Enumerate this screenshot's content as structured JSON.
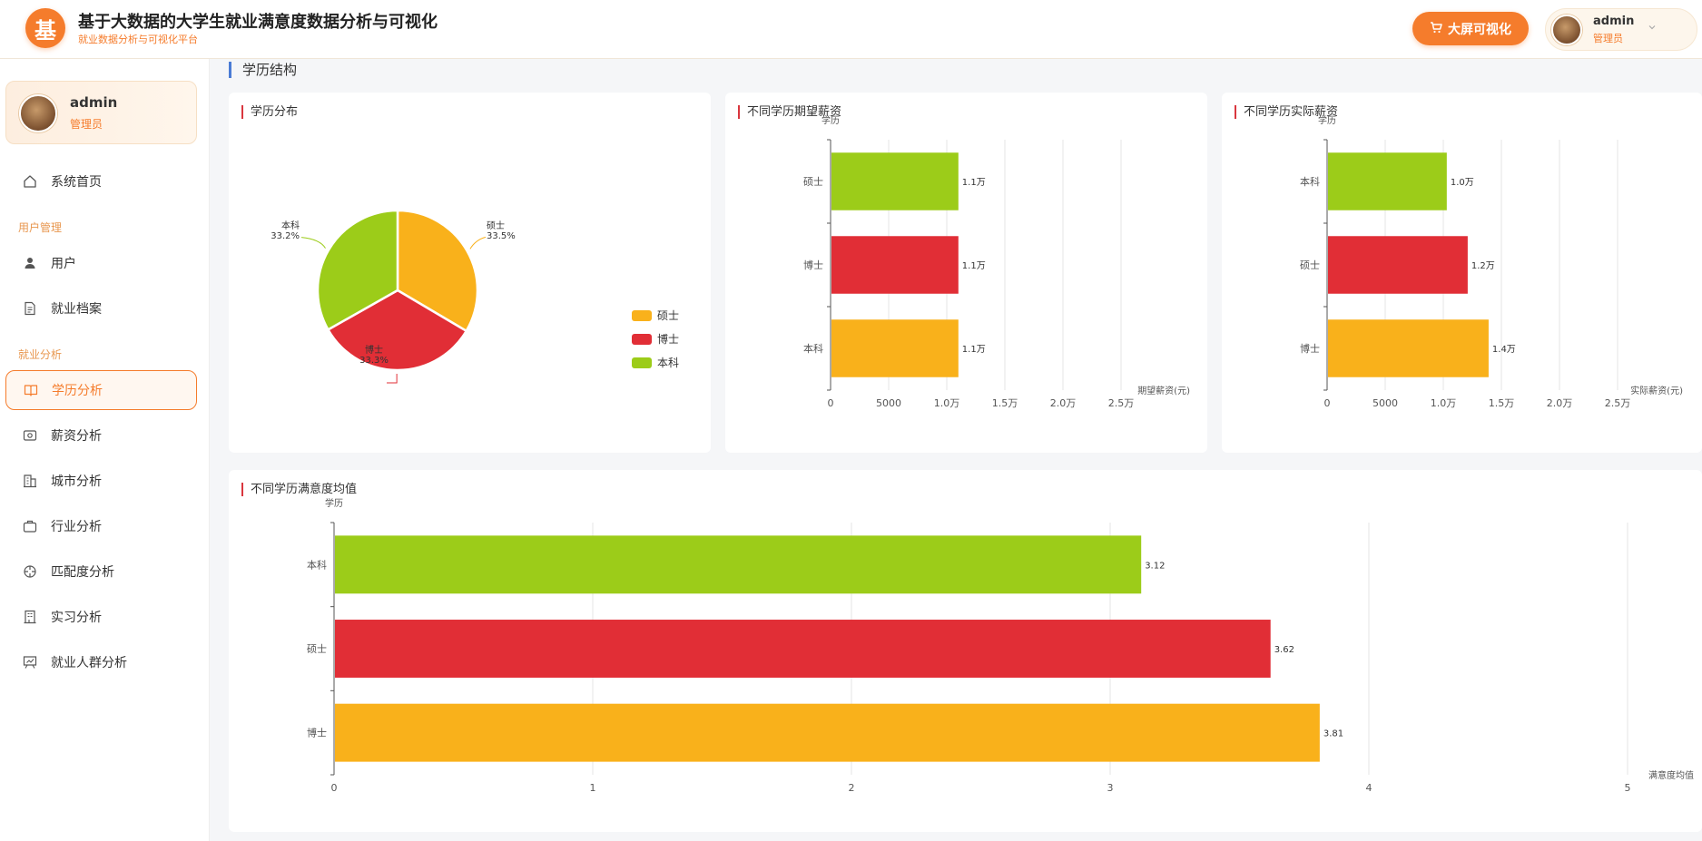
{
  "header": {
    "logo_char": "基",
    "title": "基于大数据的大学生就业满意度数据分析与可视化",
    "subtitle": "就业数据分析与可视化平台",
    "big_screen_label": "大屏可视化",
    "user_name": "admin",
    "user_role": "管理员"
  },
  "sidebar": {
    "user_name": "admin",
    "user_role": "管理员",
    "items": [
      {
        "label": "系统首页",
        "icon": "home-icon"
      },
      {
        "group": "用户管理"
      },
      {
        "label": "用户",
        "icon": "user-icon"
      },
      {
        "label": "就业档案",
        "icon": "document-icon"
      },
      {
        "group": "就业分析"
      },
      {
        "label": "学历分析",
        "icon": "book-icon",
        "active": true
      },
      {
        "label": "薪资分析",
        "icon": "money-icon"
      },
      {
        "label": "城市分析",
        "icon": "building-icon"
      },
      {
        "label": "行业分析",
        "icon": "briefcase-icon"
      },
      {
        "label": "匹配度分析",
        "icon": "target-icon"
      },
      {
        "label": "实习分析",
        "icon": "office-icon"
      },
      {
        "label": "就业人群分析",
        "icon": "presentation-icon"
      }
    ]
  },
  "main": {
    "section_title": "学历结构"
  },
  "colors": {
    "accent": "#f57c2c",
    "yellow": "#f9b11b",
    "red": "#e12e36",
    "green": "#9ccc19"
  },
  "chart_data": [
    {
      "id": "degree-distribution",
      "type": "pie",
      "title": "学历分布",
      "slices": [
        {
          "label": "硕士",
          "percent": "33.5%",
          "value": 33.5,
          "color": "#f9b11b"
        },
        {
          "label": "博士",
          "percent": "33.3%",
          "value": 33.3,
          "color": "#e12e36"
        },
        {
          "label": "本科",
          "percent": "33.2%",
          "value": 33.2,
          "color": "#9ccc19"
        }
      ],
      "legend": [
        "硕士",
        "博士",
        "本科"
      ],
      "legend_position": "bottom-right"
    },
    {
      "id": "expected-salary",
      "type": "bar",
      "orientation": "horizontal",
      "title": "不同学历期望薪资",
      "ylabel": "学历",
      "xlabel": "期望薪资(元)",
      "categories": [
        "硕士",
        "博士",
        "本科"
      ],
      "values": [
        11000,
        11000,
        11000
      ],
      "data_labels": [
        "1.1万",
        "1.1万",
        "1.1万"
      ],
      "colors": [
        "#9ccc19",
        "#e12e36",
        "#f9b11b"
      ],
      "xlim": [
        0,
        30000
      ],
      "xticks": [
        0,
        5000,
        10000,
        15000,
        20000,
        25000
      ],
      "xtick_labels": [
        "0",
        "5000",
        "1.0万",
        "1.5万",
        "2.0万",
        "2.5万"
      ]
    },
    {
      "id": "actual-salary",
      "type": "bar",
      "orientation": "horizontal",
      "title": "不同学历实际薪资",
      "ylabel": "学历",
      "xlabel": "实际薪资(元)",
      "categories": [
        "本科",
        "硕士",
        "博士"
      ],
      "values": [
        10300,
        12100,
        13900
      ],
      "data_labels": [
        "1.0万",
        "1.2万",
        "1.4万"
      ],
      "colors": [
        "#9ccc19",
        "#e12e36",
        "#f9b11b"
      ],
      "xlim": [
        0,
        30000
      ],
      "xticks": [
        0,
        5000,
        10000,
        15000,
        20000,
        25000
      ],
      "xtick_labels": [
        "0",
        "5000",
        "1.0万",
        "1.5万",
        "2.0万",
        "2.5万"
      ]
    },
    {
      "id": "satisfaction-mean",
      "type": "bar",
      "orientation": "horizontal",
      "title": "不同学历满意度均值",
      "ylabel": "学历",
      "xlabel": "满意度均值",
      "categories": [
        "本科",
        "硕士",
        "博士"
      ],
      "values": [
        3.12,
        3.62,
        3.81
      ],
      "data_labels": [
        "3.12",
        "3.62",
        "3.81"
      ],
      "colors": [
        "#9ccc19",
        "#e12e36",
        "#f9b11b"
      ],
      "xlim": [
        0,
        5.2
      ],
      "xticks": [
        0,
        1,
        2,
        3,
        4,
        5
      ],
      "xtick_labels": [
        "0",
        "1",
        "2",
        "3",
        "4",
        "5"
      ]
    }
  ]
}
